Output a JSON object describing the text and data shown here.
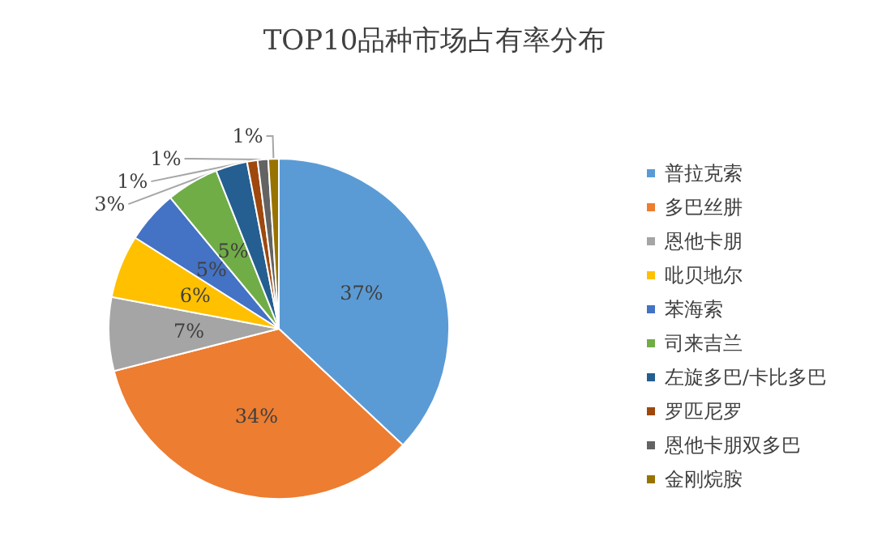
{
  "chart_data": {
    "type": "pie",
    "title": "TOP10品种市场占有率分布",
    "categories": [
      "普拉克索",
      "多巴丝肼",
      "恩他卡朋",
      "吡贝地尔",
      "苯海索",
      "司来吉兰",
      "左旋多巴/卡比多巴",
      "罗匹尼罗",
      "恩他卡朋双多巴",
      "金刚烷胺"
    ],
    "values": [
      37,
      34,
      7,
      6,
      5,
      5,
      3,
      1,
      1,
      1
    ],
    "value_labels": [
      "37%",
      "34%",
      "7%",
      "6%",
      "5%",
      "5%",
      "3%",
      "1%",
      "1%",
      "1%"
    ],
    "colors": [
      "#5b9bd5",
      "#ed7d31",
      "#a5a5a5",
      "#ffc000",
      "#4472c4",
      "#70ad47",
      "#255e91",
      "#9e480e",
      "#636363",
      "#997300"
    ],
    "legend": "right"
  }
}
